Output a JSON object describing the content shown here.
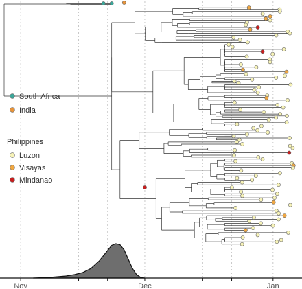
{
  "chart_data": {
    "type": "phylogenetic-tree-with-density",
    "x_axis": {
      "type": "date",
      "ticks": [
        {
          "label": "Nov",
          "date": "2021-11-01"
        },
        {
          "label": "",
          "date": "2021-11-15"
        },
        {
          "label": "",
          "date": "2021-11-22"
        },
        {
          "label": "Dec",
          "date": "2021-12-01"
        },
        {
          "label": "",
          "date": "2021-12-15"
        },
        {
          "label": "",
          "date": "2021-12-22"
        },
        {
          "label": "Jan",
          "date": "2022-01-01"
        }
      ],
      "range": [
        "2021-10-27",
        "2022-01-08"
      ],
      "gridlines": "dashed-vertical"
    },
    "legend": {
      "placement": "left",
      "country_entries": [
        {
          "label": "South Africa",
          "color": "#3aa79a"
        },
        {
          "label": "India",
          "color": "#e8943a"
        }
      ],
      "group_title": "Philippines",
      "region_entries": [
        {
          "label": "Luzon",
          "color": "#f7f3b8"
        },
        {
          "label": "Visayas",
          "color": "#f0a742"
        },
        {
          "label": "Mindanao",
          "color": "#c81e1e"
        }
      ]
    },
    "tip_counts_estimate": {
      "Luzon": 300,
      "Visayas": 40,
      "Mindanao": 8,
      "South Africa": 2,
      "India": 1
    },
    "density": {
      "label": "",
      "curve": [
        {
          "date": "2021-11-04",
          "value": 0.0
        },
        {
          "date": "2021-11-08",
          "value": 0.02
        },
        {
          "date": "2021-11-12",
          "value": 0.06
        },
        {
          "date": "2021-11-14",
          "value": 0.1
        },
        {
          "date": "2021-11-16",
          "value": 0.16
        },
        {
          "date": "2021-11-18",
          "value": 0.28
        },
        {
          "date": "2021-11-20",
          "value": 0.5
        },
        {
          "date": "2021-11-22",
          "value": 0.8
        },
        {
          "date": "2021-11-23",
          "value": 0.95
        },
        {
          "date": "2021-11-24",
          "value": 1.0
        },
        {
          "date": "2021-11-25",
          "value": 0.97
        },
        {
          "date": "2021-11-26",
          "value": 0.82
        },
        {
          "date": "2021-11-27",
          "value": 0.55
        },
        {
          "date": "2021-11-28",
          "value": 0.28
        },
        {
          "date": "2021-11-29",
          "value": 0.1
        },
        {
          "date": "2021-11-30",
          "value": 0.02
        },
        {
          "date": "2021-12-01",
          "value": 0.0
        }
      ],
      "fill_color": "#6e6e6e"
    },
    "colors": {
      "branch": "#333333",
      "gridline": "#c8c8c8",
      "node_stroke": "#666666"
    }
  }
}
